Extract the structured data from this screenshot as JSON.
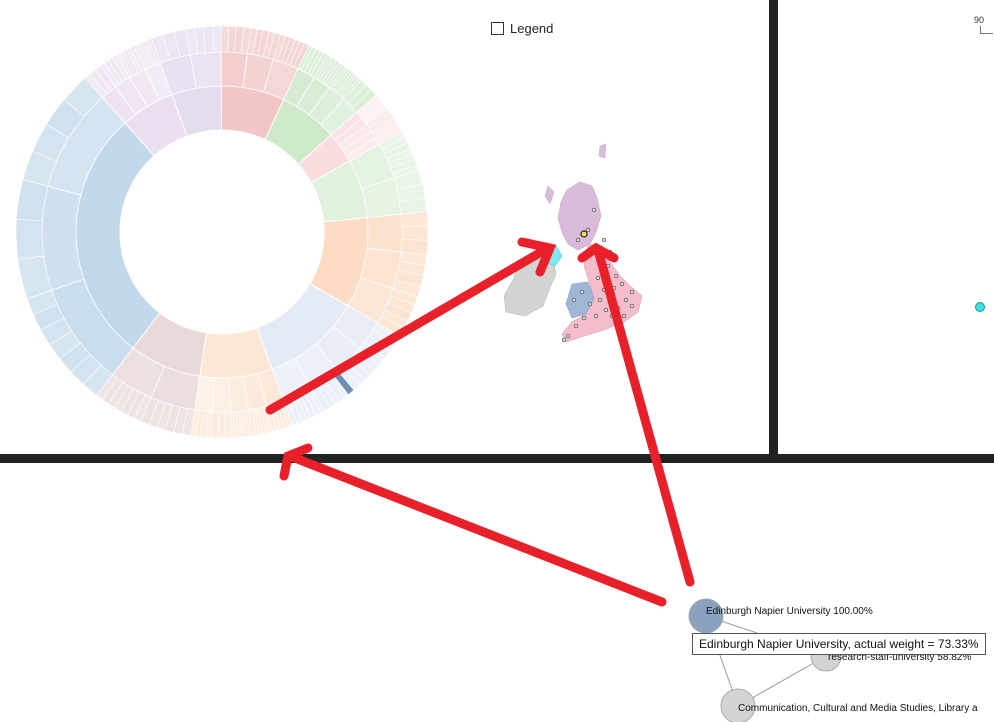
{
  "legend": {
    "label": "Legend",
    "checked": false
  },
  "right_panel": {
    "axis_label": "90"
  },
  "network": {
    "nodes": [
      {
        "label": "Edinburgh Napier University 100.00%",
        "color": "#8aa2be"
      },
      {
        "label": "research-staff-university 58.82%",
        "color": "#d4d4d4"
      },
      {
        "label": "Communication, Cultural and Media Studies, Library a",
        "color": "#d4d4d4"
      }
    ]
  },
  "tooltip": {
    "text": "Edinburgh Napier University, actual weight = 73.33%"
  },
  "colors": {
    "divider": "#222222",
    "arrow": "#e8202a",
    "map_scotland": "#d9bcd9",
    "map_england": "#f5bccb",
    "map_wales": "#9fb7d6",
    "map_ireland": "#d4d4d4",
    "map_ni": "#7ee8ee"
  }
}
